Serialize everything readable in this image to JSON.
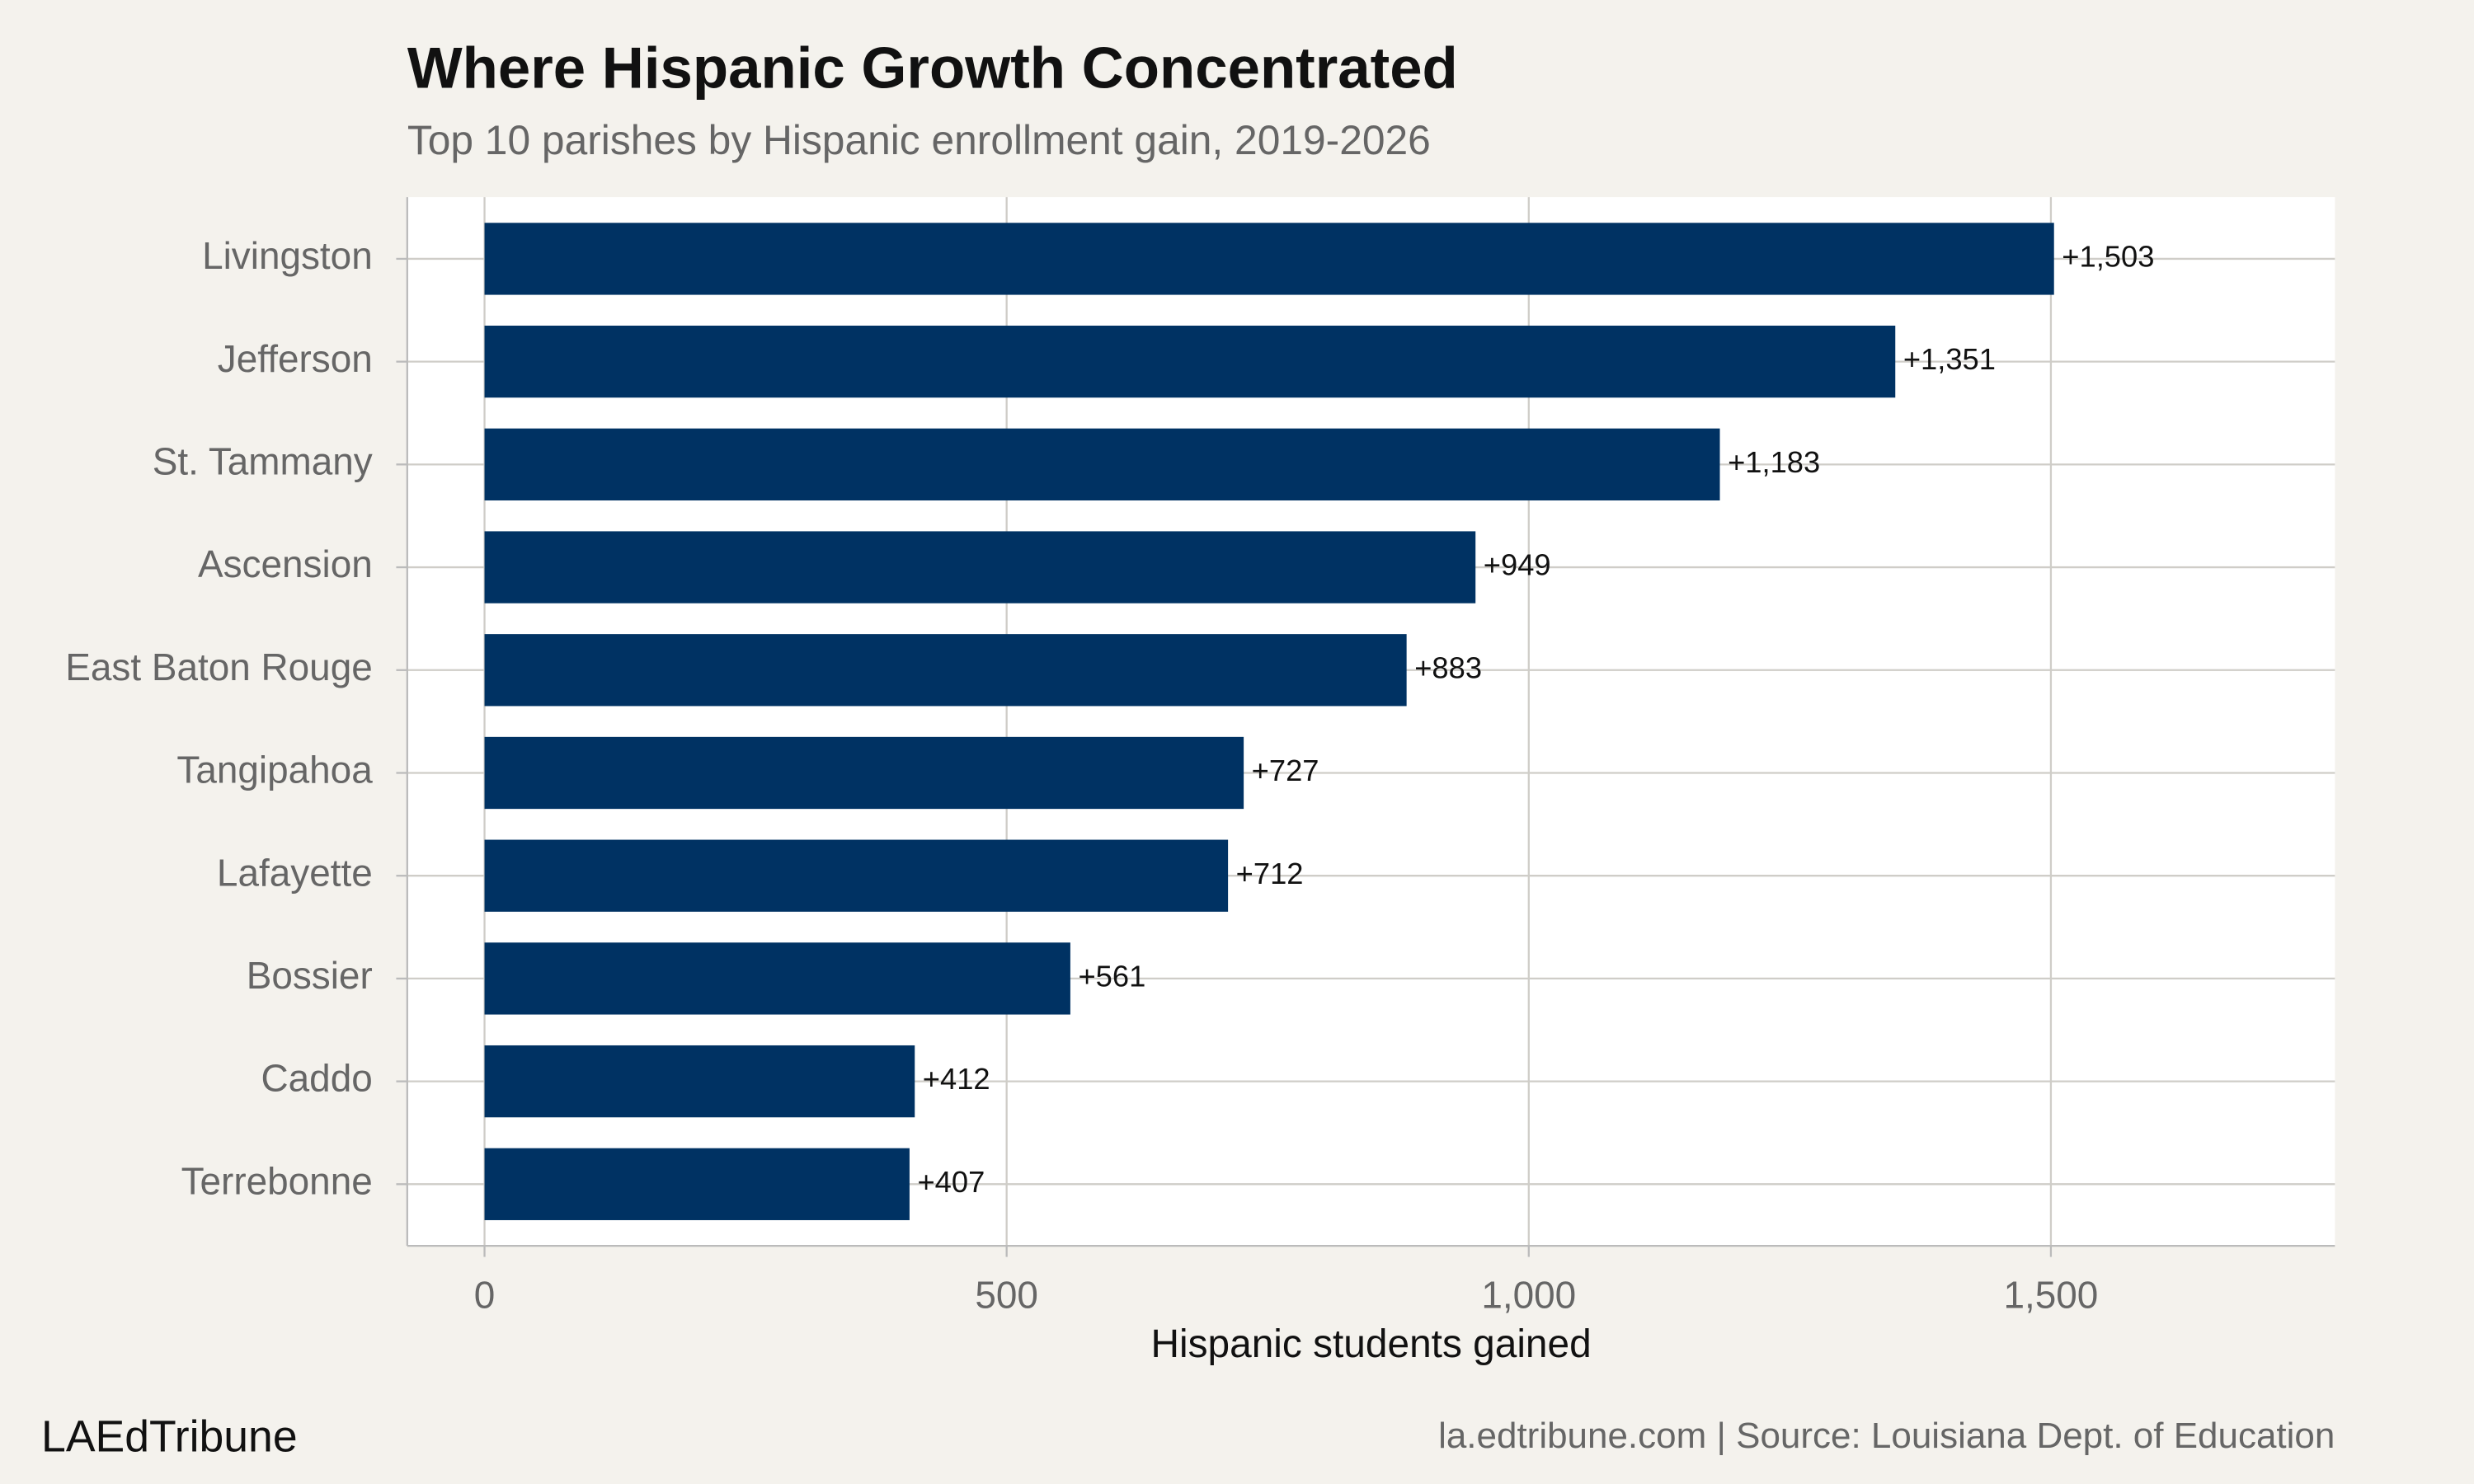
{
  "chart_data": {
    "type": "bar",
    "orientation": "horizontal",
    "title": "Where Hispanic Growth Concentrated",
    "subtitle": "Top 10 parishes by Hispanic enrollment gain, 2019-2026",
    "xlabel": "Hispanic students gained",
    "categories": [
      "Livingston",
      "Jefferson",
      "St. Tammany",
      "Ascension",
      "East Baton Rouge",
      "Tangipahoa",
      "Lafayette",
      "Bossier",
      "Caddo",
      "Terrebonne"
    ],
    "values": [
      1503,
      1351,
      1183,
      949,
      883,
      727,
      712,
      561,
      412,
      407
    ],
    "value_labels": [
      "+1,503",
      "+1,351",
      "+1,183",
      "+949",
      "+883",
      "+727",
      "+712",
      "+561",
      "+412",
      "+407"
    ],
    "color": "#003263",
    "xlim": [
      -74,
      1772
    ],
    "xticks": [
      0,
      500,
      {
        "value": 1000,
        "label": "1,000"
      },
      {
        "value": 1500,
        "label": "1,500"
      }
    ],
    "grid": true,
    "brand": "LAEdTribune",
    "source": "la.edtribune.com | Source: Louisiana Dept. of Education"
  }
}
